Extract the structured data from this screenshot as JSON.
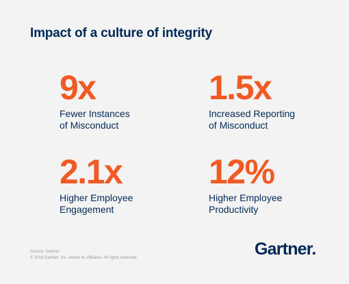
{
  "title": "Impact of a culture of integrity",
  "stats": [
    {
      "value": "9x",
      "line1": "Fewer Instances",
      "line2": "of Misconduct"
    },
    {
      "value": "1.5x",
      "line1": "Increased Reporting",
      "line2": "of Misconduct"
    },
    {
      "value": "2.1x",
      "line1": "Higher Employee",
      "line2": "Engagement"
    },
    {
      "value": "12%",
      "line1": "Higher Employee",
      "line2": "Productivity"
    }
  ],
  "footer": {
    "source": "Source: Gartner",
    "copyright": "© 2019 Gartner, Inc. and/or its affiliates. All rights reserved."
  },
  "logo": {
    "text": "Gartner."
  },
  "colors": {
    "background": "#f3f3f3",
    "accent": "#f15a22",
    "navy": "#002856"
  }
}
